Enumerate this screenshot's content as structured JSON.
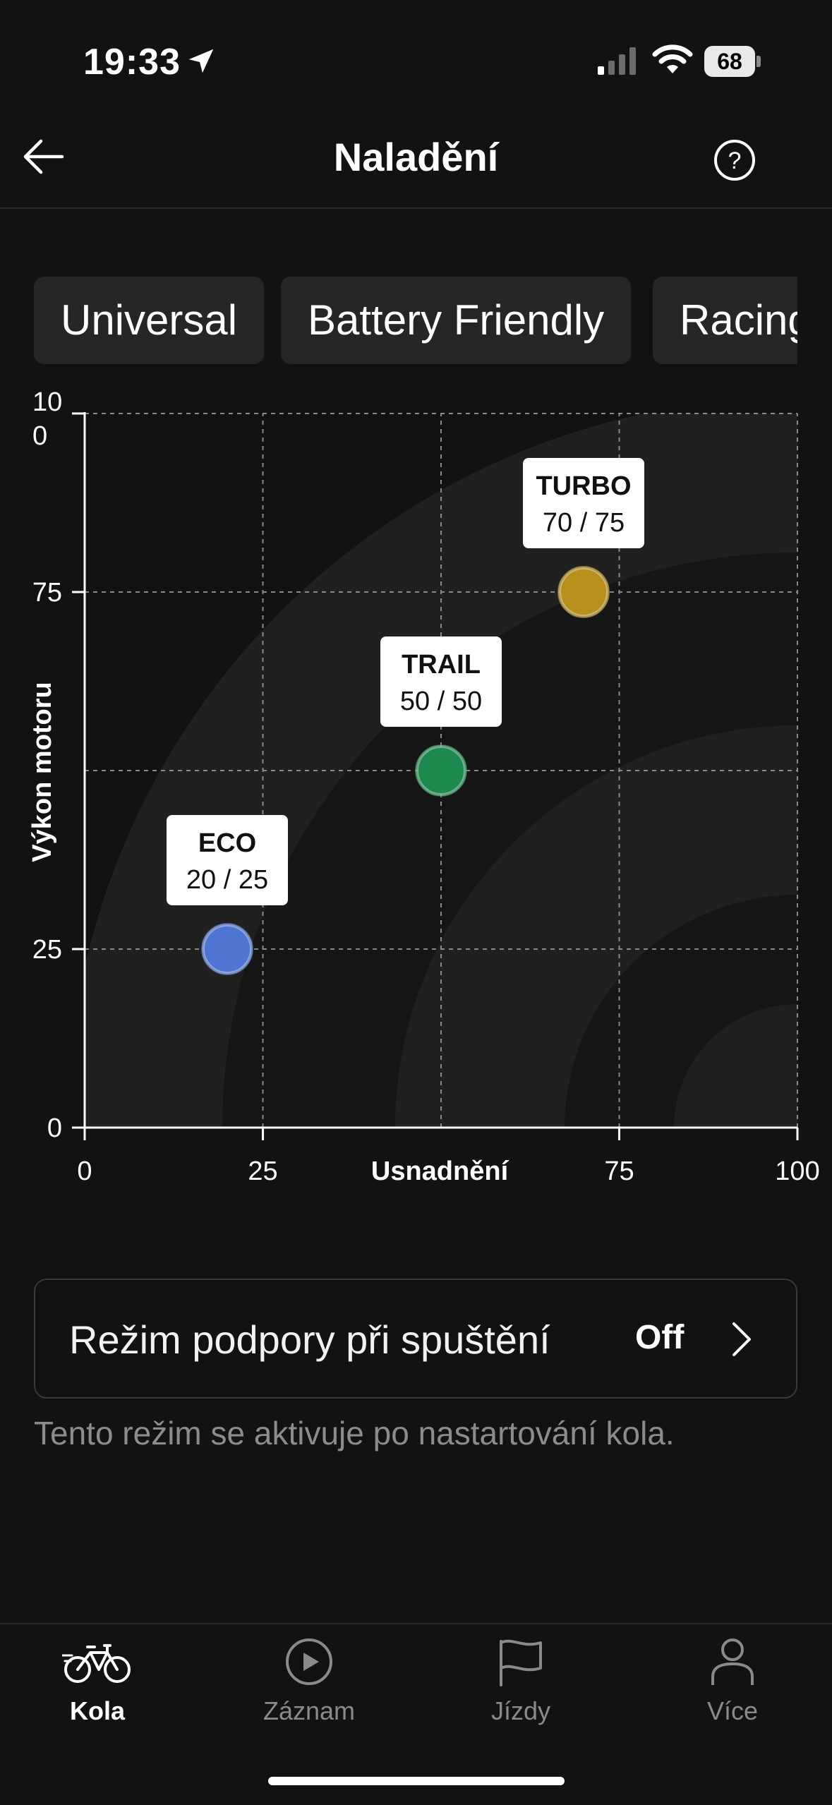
{
  "status_bar": {
    "time": "19:33",
    "battery": "68"
  },
  "nav": {
    "title": "Naladění"
  },
  "chips": [
    "Universal",
    "Battery Friendly",
    "Racing"
  ],
  "chart_data": {
    "type": "scatter",
    "xlabel": "Usnadnění",
    "ylabel": "Výkon motoru",
    "xlim": [
      0,
      100
    ],
    "ylim": [
      0,
      100
    ],
    "x_ticks": [
      "0",
      "25",
      "75",
      "100"
    ],
    "y_ticks": [
      "0",
      "25",
      "75",
      "10\n0"
    ],
    "grid": true,
    "points": [
      {
        "name": "ECO",
        "label": "20 / 25",
        "x": 20,
        "y": 25,
        "color": "#4f75d3"
      },
      {
        "name": "TRAIL",
        "label": "50 / 50",
        "x": 50,
        "y": 50,
        "color": "#1f8a4f"
      },
      {
        "name": "TURBO",
        "label": "70 / 75",
        "x": 70,
        "y": 75,
        "color": "#b8901c"
      }
    ]
  },
  "start_mode": {
    "label": "Režim podpory při spuštění",
    "value": "Off"
  },
  "hint": "Tento režim se aktivuje po nastartování kola.",
  "tabs": [
    {
      "label": "Kola",
      "icon": "bike-icon",
      "active": true
    },
    {
      "label": "Záznam",
      "icon": "play-icon",
      "active": false
    },
    {
      "label": "Jízdy",
      "icon": "flag-icon",
      "active": false
    },
    {
      "label": "Více",
      "icon": "person-icon",
      "active": false
    }
  ],
  "colors": {
    "background": "#121212",
    "active_tab": "#ffffff",
    "inactive_tab": "#8a8a8a"
  }
}
